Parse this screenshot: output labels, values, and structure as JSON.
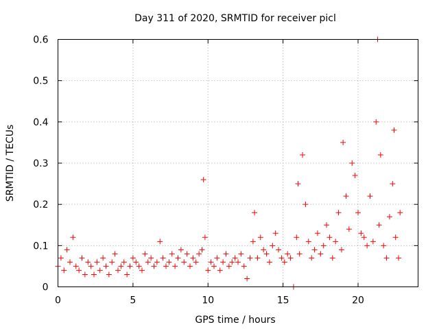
{
  "chart_data": {
    "type": "scatter",
    "title": "Day 311 of 2020, SRMTID for receiver picl",
    "xlabel": "GPS time / hours",
    "ylabel": "SRMTID / TECUs",
    "xlim": [
      0,
      24
    ],
    "ylim": [
      0,
      0.6
    ],
    "xticks": [
      0,
      5,
      10,
      15,
      20
    ],
    "xtick_labels": [
      "0",
      "5",
      "10",
      "15",
      "20"
    ],
    "yticks": [
      0,
      0.1,
      0.2,
      0.3,
      0.4,
      0.5,
      0.6
    ],
    "ytick_labels": [
      "0",
      "0.1",
      "0.2",
      "0.3",
      "0.4",
      "0.5",
      "0.6"
    ],
    "grid": true,
    "marker": "+",
    "color": "#ff0000",
    "series": [
      {
        "name": "picl",
        "x": [
          0.0,
          0.2,
          0.4,
          0.6,
          0.8,
          1.0,
          1.2,
          1.4,
          1.6,
          1.8,
          2.0,
          2.2,
          2.4,
          2.6,
          2.8,
          3.0,
          3.2,
          3.4,
          3.6,
          3.8,
          4.0,
          4.2,
          4.4,
          4.6,
          4.8,
          5.0,
          5.2,
          5.4,
          5.6,
          5.8,
          6.0,
          6.2,
          6.4,
          6.6,
          6.8,
          7.0,
          7.2,
          7.4,
          7.6,
          7.8,
          8.0,
          8.2,
          8.4,
          8.6,
          8.8,
          9.0,
          9.2,
          9.4,
          9.6,
          9.7,
          9.8,
          10.0,
          10.2,
          10.4,
          10.6,
          10.8,
          11.0,
          11.2,
          11.4,
          11.6,
          11.8,
          12.0,
          12.2,
          12.4,
          12.6,
          12.8,
          13.0,
          13.1,
          13.3,
          13.5,
          13.7,
          13.9,
          14.1,
          14.3,
          14.5,
          14.7,
          14.9,
          15.1,
          15.3,
          15.5,
          15.7,
          15.9,
          16.0,
          16.1,
          16.3,
          16.5,
          16.7,
          16.9,
          17.1,
          17.3,
          17.5,
          17.7,
          17.9,
          18.1,
          18.3,
          18.5,
          18.7,
          18.9,
          19.0,
          19.2,
          19.4,
          19.6,
          19.8,
          20.0,
          20.2,
          20.4,
          20.6,
          20.8,
          21.0,
          21.2,
          21.3,
          21.4,
          21.5,
          21.7,
          21.9,
          22.1,
          22.3,
          22.4,
          22.5,
          22.7,
          22.8
        ],
        "y": [
          0.05,
          0.07,
          0.04,
          0.09,
          0.06,
          0.12,
          0.05,
          0.04,
          0.07,
          0.03,
          0.06,
          0.05,
          0.03,
          0.06,
          0.04,
          0.07,
          0.05,
          0.03,
          0.06,
          0.08,
          0.04,
          0.05,
          0.06,
          0.03,
          0.05,
          0.07,
          0.06,
          0.05,
          0.04,
          0.08,
          0.06,
          0.07,
          0.05,
          0.06,
          0.11,
          0.07,
          0.05,
          0.06,
          0.08,
          0.05,
          0.07,
          0.09,
          0.06,
          0.08,
          0.05,
          0.07,
          0.06,
          0.08,
          0.09,
          0.26,
          0.12,
          0.04,
          0.06,
          0.05,
          0.07,
          0.04,
          0.06,
          0.08,
          0.05,
          0.06,
          0.07,
          0.06,
          0.08,
          0.05,
          0.02,
          0.07,
          0.11,
          0.18,
          0.07,
          0.12,
          0.09,
          0.08,
          0.06,
          0.1,
          0.13,
          0.09,
          0.07,
          0.06,
          0.08,
          0.07,
          0.0,
          0.12,
          0.25,
          0.08,
          0.32,
          0.2,
          0.11,
          0.07,
          0.09,
          0.13,
          0.08,
          0.1,
          0.15,
          0.12,
          0.07,
          0.11,
          0.18,
          0.09,
          0.35,
          0.22,
          0.14,
          0.3,
          0.27,
          0.18,
          0.13,
          0.12,
          0.1,
          0.22,
          0.11,
          0.4,
          0.6,
          0.15,
          0.32,
          0.1,
          0.07,
          0.17,
          0.25,
          0.38,
          0.12,
          0.07,
          0.18
        ]
      }
    ]
  }
}
